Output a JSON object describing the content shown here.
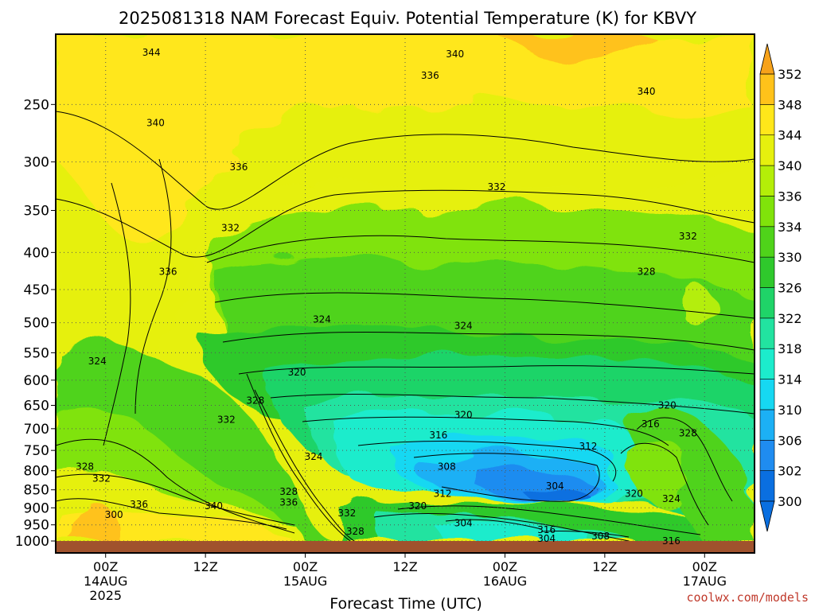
{
  "chart_data": {
    "type": "heatmap",
    "title": "2025081318 NAM Forecast Equiv. Potential Temperature (K) for KBVY",
    "xlabel": "Forecast Time (UTC)",
    "ylabel": "",
    "credit": "coolwx.com/models",
    "x_ticks": [
      {
        "hour": 6,
        "label": "00Z",
        "sub1": "14AUG",
        "sub2": "2025"
      },
      {
        "hour": 18,
        "label": "12Z",
        "sub1": "",
        "sub2": ""
      },
      {
        "hour": 30,
        "label": "00Z",
        "sub1": "15AUG",
        "sub2": ""
      },
      {
        "hour": 42,
        "label": "12Z",
        "sub1": "",
        "sub2": ""
      },
      {
        "hour": 54,
        "label": "00Z",
        "sub1": "16AUG",
        "sub2": ""
      },
      {
        "hour": 66,
        "label": "12Z",
        "sub1": "",
        "sub2": ""
      },
      {
        "hour": 78,
        "label": "00Z",
        "sub1": "17AUG",
        "sub2": ""
      }
    ],
    "xlim": [
      0,
      84
    ],
    "y_ticks": [
      250,
      300,
      350,
      400,
      450,
      500,
      550,
      600,
      650,
      700,
      750,
      800,
      850,
      900,
      950,
      1000
    ],
    "ylim": [
      200,
      1000
    ],
    "y_scale": "log",
    "y_top_label_hidden": true,
    "colorbar": {
      "levels": [
        300,
        302,
        306,
        310,
        314,
        318,
        322,
        326,
        330,
        334,
        336,
        340,
        344,
        348,
        352
      ],
      "labels": [
        "300",
        "302",
        "306",
        "310",
        "314",
        "318",
        "322",
        "326",
        "330",
        "334",
        "336",
        "340",
        "344",
        "348",
        "352"
      ],
      "colors": [
        "#0a6fe0",
        "#1f8cf0",
        "#1cb0f5",
        "#16d8f2",
        "#1ceccc",
        "#22e3a0",
        "#1fd468",
        "#2fc92c",
        "#4fd31a",
        "#80e30a",
        "#b4ee08",
        "#e6f00e",
        "#ffe71a",
        "#ffc21a",
        "#f7a21a"
      ]
    },
    "contour_labels": [
      {
        "t": 11.5,
        "p": 212,
        "v": "344"
      },
      {
        "t": 48,
        "p": 213,
        "v": "340"
      },
      {
        "t": 71,
        "p": 240,
        "v": "340"
      },
      {
        "t": 45,
        "p": 228,
        "v": "336"
      },
      {
        "t": 12,
        "p": 265,
        "v": "340"
      },
      {
        "t": 22,
        "p": 305,
        "v": "336"
      },
      {
        "t": 53,
        "p": 325,
        "v": "332"
      },
      {
        "t": 76,
        "p": 380,
        "v": "332"
      },
      {
        "t": 21,
        "p": 370,
        "v": "332"
      },
      {
        "t": 13.5,
        "p": 425,
        "v": "336"
      },
      {
        "t": 71,
        "p": 425,
        "v": "328"
      },
      {
        "t": 32,
        "p": 495,
        "v": "324"
      },
      {
        "t": 49,
        "p": 505,
        "v": "324"
      },
      {
        "t": 5,
        "p": 565,
        "v": "324"
      },
      {
        "t": 29,
        "p": 585,
        "v": "320"
      },
      {
        "t": 24,
        "p": 640,
        "v": "328"
      },
      {
        "t": 20.5,
        "p": 680,
        "v": "332"
      },
      {
        "t": 49,
        "p": 670,
        "v": "320"
      },
      {
        "t": 46,
        "p": 715,
        "v": "316"
      },
      {
        "t": 73.5,
        "p": 650,
        "v": "320"
      },
      {
        "t": 71.5,
        "p": 690,
        "v": "316"
      },
      {
        "t": 76,
        "p": 710,
        "v": "328"
      },
      {
        "t": 64,
        "p": 740,
        "v": "312"
      },
      {
        "t": 47,
        "p": 790,
        "v": "308"
      },
      {
        "t": 60,
        "p": 840,
        "v": "304"
      },
      {
        "t": 31,
        "p": 765,
        "v": "324"
      },
      {
        "t": 3.5,
        "p": 790,
        "v": "328"
      },
      {
        "t": 5.5,
        "p": 820,
        "v": "332"
      },
      {
        "t": 28,
        "p": 855,
        "v": "328"
      },
      {
        "t": 28,
        "p": 885,
        "v": "336"
      },
      {
        "t": 46.5,
        "p": 860,
        "v": "312"
      },
      {
        "t": 43.5,
        "p": 895,
        "v": "320"
      },
      {
        "t": 69.5,
        "p": 860,
        "v": "320"
      },
      {
        "t": 74,
        "p": 875,
        "v": "324"
      },
      {
        "t": 10,
        "p": 890,
        "v": "336"
      },
      {
        "t": 19,
        "p": 895,
        "v": "340"
      },
      {
        "t": 35,
        "p": 915,
        "v": "332"
      },
      {
        "t": 7,
        "p": 920,
        "v": "300"
      },
      {
        "t": 36,
        "p": 970,
        "v": "328"
      },
      {
        "t": 49,
        "p": 945,
        "v": "304"
      },
      {
        "t": 59,
        "p": 965,
        "v": "316"
      },
      {
        "t": 59,
        "p": 993,
        "v": "304"
      },
      {
        "t": 65.5,
        "p": 985,
        "v": "308"
      },
      {
        "t": 74,
        "p": 1000,
        "v": "316"
      }
    ]
  }
}
